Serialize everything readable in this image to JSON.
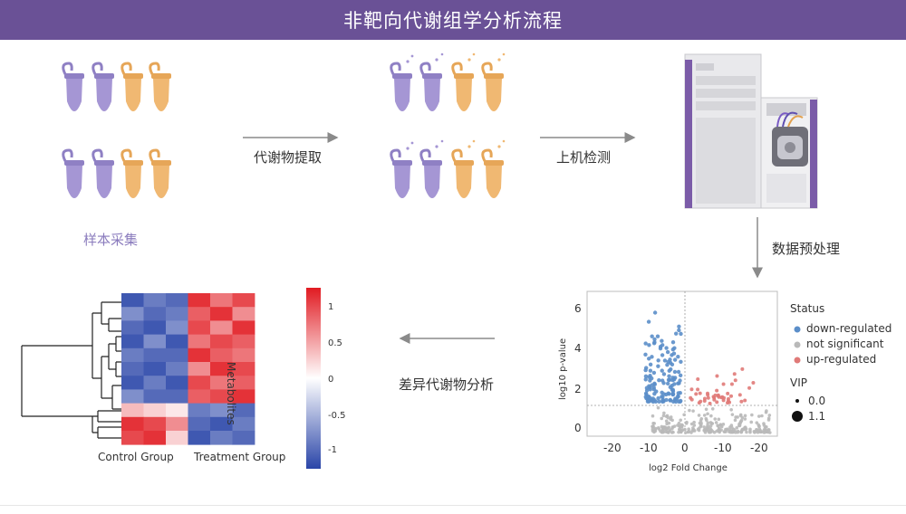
{
  "header": {
    "title": "非靶向代谢组学分析流程"
  },
  "steps": {
    "sample_collection": "样本采集",
    "extraction": "代谢物提取",
    "instrument_detection": "上机检测",
    "preprocessing": "数据预处理",
    "differential_analysis": "差异代谢物分析"
  },
  "colors": {
    "header_bg": "#6a5196",
    "tube_purple": "#a596d4",
    "tube_orange": "#f0b872",
    "volcano_down": "#5b8ec9",
    "volcano_ns": "#b9b9b9",
    "volcano_up": "#e07a78"
  },
  "volcano": {
    "ylabel": "log10 p-value",
    "xlabel": "log2 Fold Change",
    "x_ticks": [
      "-20",
      "-10",
      "0",
      "-10",
      "-20"
    ],
    "y_ticks": [
      "0",
      "2",
      "4",
      "6"
    ],
    "legend_status_title": "Status",
    "legend_items": [
      "down-regulated",
      "not significant",
      "up-regulated"
    ],
    "legend_vip_title": "VIP",
    "vip_values": [
      "0.0",
      "1.1"
    ]
  },
  "heatmap": {
    "row_label": "Metabolites",
    "group_labels": [
      "Control Group",
      "Treatment Group"
    ],
    "scale_ticks": [
      "1",
      "0.5",
      "0",
      "-0.5",
      "-1"
    ],
    "rows": [
      [
        -0.9,
        -0.7,
        -0.8,
        0.9,
        0.6,
        0.8
      ],
      [
        -0.6,
        -0.8,
        -0.7,
        0.7,
        0.9,
        0.5
      ],
      [
        -0.8,
        -0.9,
        -0.6,
        0.8,
        0.5,
        0.9
      ],
      [
        -0.9,
        -0.6,
        -0.9,
        0.6,
        0.8,
        0.7
      ],
      [
        -0.7,
        -0.8,
        -0.8,
        0.9,
        0.7,
        0.6
      ],
      [
        -0.8,
        -0.9,
        -0.7,
        0.5,
        0.9,
        0.8
      ],
      [
        -0.9,
        -0.7,
        -0.9,
        0.8,
        0.6,
        0.7
      ],
      [
        -0.6,
        -0.8,
        -0.8,
        0.7,
        0.8,
        0.9
      ],
      [
        0.3,
        0.2,
        0.1,
        -0.7,
        -0.6,
        -0.8
      ],
      [
        0.9,
        0.8,
        0.5,
        -0.8,
        -0.9,
        -0.7
      ],
      [
        0.8,
        0.9,
        0.2,
        -0.9,
        -0.7,
        -0.8
      ]
    ]
  }
}
